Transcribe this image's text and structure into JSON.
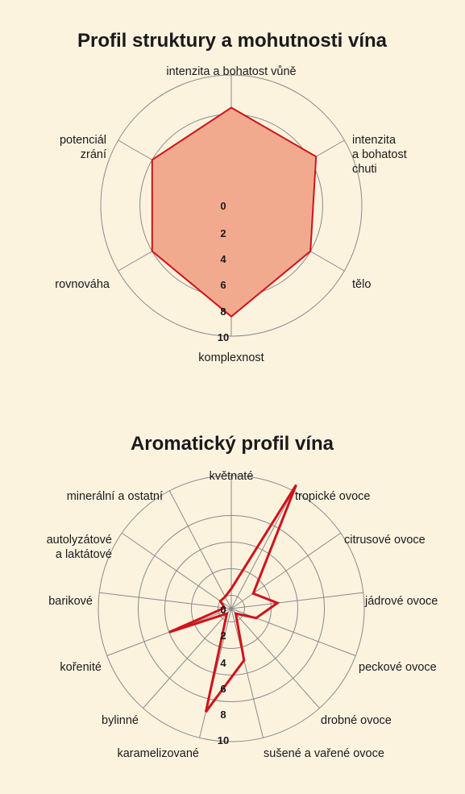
{
  "chart_data": [
    {
      "type": "radar",
      "title": "Profil struktury a mohutnosti vína",
      "categories": [
        "intenzita a bohatost vůně",
        "intenzita\na bohatost\nchuti",
        "tělo",
        "komplexnost",
        "rovnováha",
        "potenciál\nzrání"
      ],
      "series": [
        {
          "values": [
            7.5,
            7.5,
            7.0,
            8.5,
            7.0,
            7.0
          ]
        }
      ],
      "tick_labels": [
        "0",
        "2",
        "4",
        "6",
        "8",
        "10"
      ],
      "rmin": 0,
      "rmax": 10,
      "grid": true,
      "colors": {
        "line": "#d0121b",
        "fill": "#f2aa8e",
        "grid": "#8a8a8a"
      }
    },
    {
      "type": "radar",
      "title": "Aromatický profil vína",
      "categories": [
        "květnaté",
        "tropické ovoce",
        "citrusové ovoce",
        "jádrové ovoce",
        "peckové ovoce",
        "drobné ovoce",
        "sušené a vařené ovoce",
        "karamelizované",
        "bylinné",
        "kořenité",
        "barikové",
        "autolyzátové\na laktátové",
        "minerální a ostatní"
      ],
      "series": [
        {
          "values": [
            1.5,
            10.5,
            2.0,
            3.5,
            2.0,
            0.5,
            4.0,
            8.0,
            0.5,
            5.0,
            0.5,
            1.0,
            1.0
          ]
        }
      ],
      "tick_labels": [
        "0",
        "2",
        "4",
        "6",
        "8",
        "10"
      ],
      "rmin": 0,
      "rmax": 10,
      "grid": true,
      "colors": {
        "line": "#d0121b",
        "fill": "none",
        "grid": "#8a8a8a"
      }
    }
  ]
}
